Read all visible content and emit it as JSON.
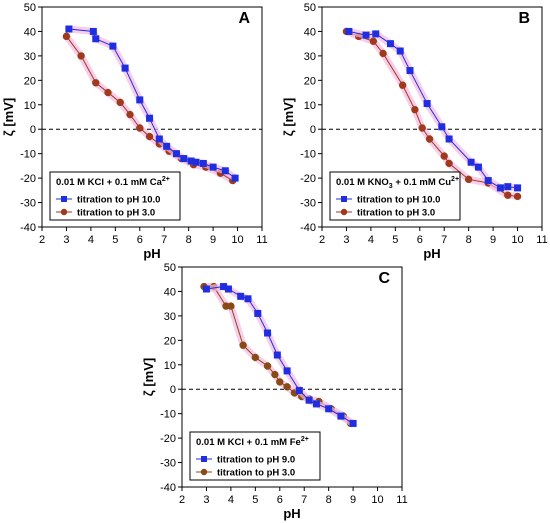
{
  "chart_data": [
    {
      "type": "line",
      "panel_label": "A",
      "xlabel": "pH",
      "ylabel": "ζ [mV]",
      "xlim": [
        2,
        11
      ],
      "ylim": [
        -40,
        50
      ],
      "xticks": [
        2,
        3,
        4,
        5,
        6,
        7,
        8,
        9,
        10,
        11
      ],
      "yticks": [
        -40,
        -30,
        -20,
        -10,
        0,
        10,
        20,
        30,
        40,
        50
      ],
      "grid": false,
      "zero_line": true,
      "legend_position": "bottom-left",
      "legend_title": {
        "main": "0.01 M KCl + 0.1 mM Ca",
        "sup": "2+"
      },
      "series": [
        {
          "name": "titration to pH 10.0",
          "marker": "square",
          "color": "#1f2fe0",
          "x": [
            3.1,
            4.1,
            4.2,
            4.9,
            5.4,
            6.0,
            6.4,
            6.8,
            7.1,
            7.5,
            7.8,
            8.1,
            8.3,
            8.6,
            9.0,
            9.5,
            9.9
          ],
          "y": [
            41,
            40,
            37,
            34,
            25,
            12,
            4.5,
            -4,
            -7,
            -10,
            -12,
            -13,
            -13.5,
            -14,
            -15.5,
            -17,
            -20
          ]
        },
        {
          "name": "titration to pH 3.0",
          "marker": "circle",
          "color": "#a03a1c",
          "x": [
            3.0,
            3.6,
            4.2,
            4.7,
            5.2,
            5.6,
            6.0,
            6.4,
            6.8,
            7.2,
            7.7,
            8.2,
            8.7,
            9.3,
            9.8
          ],
          "y": [
            38,
            30,
            19,
            15,
            11,
            6,
            0.5,
            -3,
            -6,
            -9,
            -12,
            -14.5,
            -15.5,
            -18,
            -21
          ]
        }
      ]
    },
    {
      "type": "line",
      "panel_label": "B",
      "xlabel": "pH",
      "ylabel": "ζ [mV]",
      "xlim": [
        2,
        11
      ],
      "ylim": [
        -40,
        50
      ],
      "xticks": [
        2,
        3,
        4,
        5,
        6,
        7,
        8,
        9,
        10,
        11
      ],
      "yticks": [
        -40,
        -30,
        -20,
        -10,
        0,
        10,
        20,
        30,
        40,
        50
      ],
      "grid": false,
      "zero_line": true,
      "legend_position": "bottom-left",
      "legend_title": {
        "main": "0.01 M KNO",
        "sub": "3",
        "main2": " + 0.1 mM Cu",
        "sup": "2+"
      },
      "series": [
        {
          "name": "titration to pH 10.0",
          "marker": "square",
          "color": "#1f2fe0",
          "x": [
            3.1,
            3.8,
            4.2,
            4.8,
            5.2,
            5.6,
            6.3,
            6.9,
            7.2,
            8.1,
            8.4,
            8.8,
            9.3,
            9.6,
            10.0
          ],
          "y": [
            40,
            38.5,
            39,
            35,
            32,
            24,
            10.5,
            1,
            -4,
            -13.5,
            -15.5,
            -21,
            -24,
            -23.5,
            -24
          ]
        },
        {
          "name": "titration to pH 3.0",
          "marker": "circle",
          "color": "#a03a1c",
          "x": [
            3.0,
            3.5,
            4.1,
            4.5,
            5.3,
            5.8,
            6.1,
            6.4,
            7.0,
            7.2,
            8.0,
            8.8,
            9.6,
            10.0
          ],
          "y": [
            40,
            38,
            36,
            31,
            18,
            8,
            0.5,
            -4,
            -11,
            -14,
            -20.5,
            -22,
            -27,
            -27.5
          ]
        }
      ]
    },
    {
      "type": "line",
      "panel_label": "C",
      "xlabel": "pH",
      "ylabel": "ζ [mV]",
      "xlim": [
        2,
        11
      ],
      "ylim": [
        -40,
        50
      ],
      "xticks": [
        2,
        3,
        4,
        5,
        6,
        7,
        8,
        9,
        10,
        11
      ],
      "yticks": [
        -40,
        -30,
        -20,
        -10,
        0,
        10,
        20,
        30,
        40,
        50
      ],
      "grid": false,
      "zero_line": true,
      "legend_position": "bottom-left",
      "legend_title": {
        "main": "0.01 M KCl + 0.1 mM Fe",
        "sup": "2+"
      },
      "series": [
        {
          "name": "titration to pH 9.0",
          "marker": "square",
          "color": "#1f2fe0",
          "x": [
            3.0,
            3.7,
            3.9,
            4.4,
            4.7,
            5.1,
            5.5,
            5.9,
            6.3,
            6.8,
            7.2,
            7.5,
            8.0,
            8.5,
            9.0
          ],
          "y": [
            41,
            42,
            41,
            38,
            37,
            31,
            23,
            14,
            7.5,
            -0.5,
            -4.5,
            -6,
            -8,
            -11,
            -14
          ]
        },
        {
          "name": "titration to pH 3.0",
          "marker": "circle",
          "color": "#8a4a16",
          "x": [
            2.9,
            3.3,
            3.8,
            4.0,
            4.5,
            5.0,
            5.5,
            5.8,
            6.0,
            6.3,
            6.6,
            6.9,
            7.2,
            7.6,
            8.1,
            8.6,
            8.9
          ],
          "y": [
            42,
            42,
            34,
            34,
            18,
            13,
            9.5,
            6,
            3,
            1,
            -1.5,
            -3,
            -4,
            -5,
            -8,
            -11,
            -14
          ]
        }
      ]
    }
  ]
}
